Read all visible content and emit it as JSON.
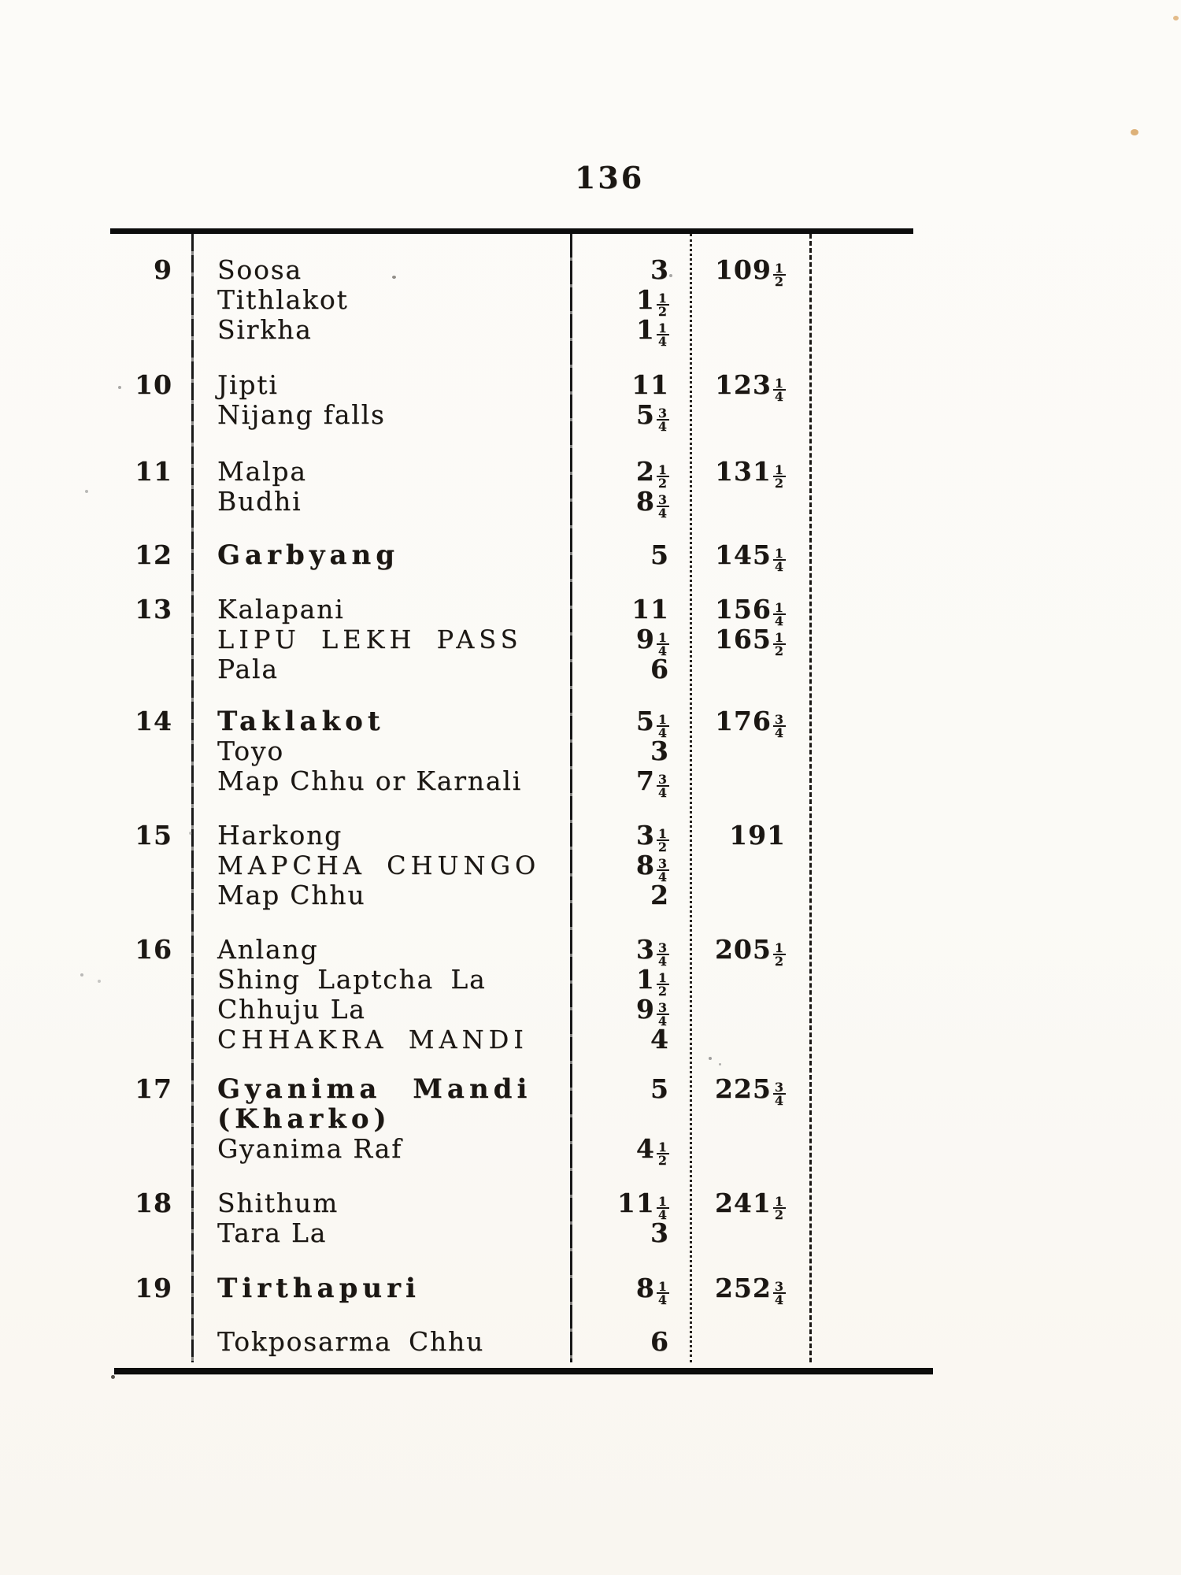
{
  "page": {
    "number": "136"
  },
  "table": {
    "rows": [
      {
        "no": "9",
        "lines": [
          {
            "name": "Soosa",
            "miles": "3",
            "total": "109½"
          },
          {
            "name": "Tithlakot",
            "miles": "1½",
            "total": ""
          },
          {
            "name": "Sirkha",
            "miles": "1¼",
            "total": ""
          }
        ]
      },
      {
        "no": "10",
        "lines": [
          {
            "name": "Jipti",
            "miles": "11",
            "total": "123¼"
          },
          {
            "name": "Nijang falls",
            "miles": "5¾",
            "total": ""
          }
        ]
      },
      {
        "no": "11",
        "lines": [
          {
            "name": "Malpa",
            "miles": "2½",
            "total": "131½"
          },
          {
            "name": "Budhi",
            "miles": "8¾",
            "total": ""
          }
        ]
      },
      {
        "no": "12",
        "lines": [
          {
            "name": "Garbyang",
            "miles": "5",
            "total": "145¼"
          }
        ]
      },
      {
        "no": "13",
        "lines": [
          {
            "name": "Kalapani",
            "miles": "11",
            "total": "156¼"
          },
          {
            "name": "LIPU LEKH PASS",
            "miles": "9¼",
            "total": "165½"
          },
          {
            "name": "Pala",
            "miles": "6",
            "total": ""
          }
        ]
      },
      {
        "no": "14",
        "lines": [
          {
            "name": "Taklakot",
            "miles": "5¼",
            "total": "176¾"
          },
          {
            "name": "Toyo",
            "miles": "3",
            "total": ""
          },
          {
            "name": "Map Chhu or Karnali",
            "miles": "7¾",
            "total": ""
          }
        ]
      },
      {
        "no": "15",
        "lines": [
          {
            "name": "Harkong",
            "miles": "3½",
            "total": "191"
          },
          {
            "name": "MAPCHA CHUNGO",
            "miles": "8¾",
            "total": ""
          },
          {
            "name": "Map Chhu",
            "miles": "2",
            "total": ""
          }
        ]
      },
      {
        "no": "16",
        "lines": [
          {
            "name": "Anlang",
            "miles": "3¾",
            "total": "205½"
          },
          {
            "name": "Shing Laptcha La",
            "miles": "1½",
            "total": ""
          },
          {
            "name": "Chhuju La",
            "miles": "9¾",
            "total": ""
          },
          {
            "name": "CHHAKRA MANDI",
            "miles": "4",
            "total": ""
          }
        ]
      },
      {
        "no": "17",
        "lines": [
          {
            "name": "Gyanima Mandi",
            "miles": "5",
            "total": "225¾"
          },
          {
            "name": "(Kharko)",
            "miles": "",
            "total": ""
          },
          {
            "name": "Gyanima Raf",
            "miles": "4½",
            "total": ""
          }
        ]
      },
      {
        "no": "18",
        "lines": [
          {
            "name": "Shithum",
            "miles": "11¼",
            "total": "241½"
          },
          {
            "name": "Tara La",
            "miles": "3",
            "total": ""
          }
        ]
      },
      {
        "no": "19",
        "lines": [
          {
            "name": "Tirthapuri",
            "miles": "8¼",
            "total": "252¾"
          }
        ]
      },
      {
        "no": "",
        "lines": [
          {
            "name": "Tokposarma Chhu",
            "miles": "6",
            "total": ""
          }
        ]
      }
    ]
  }
}
